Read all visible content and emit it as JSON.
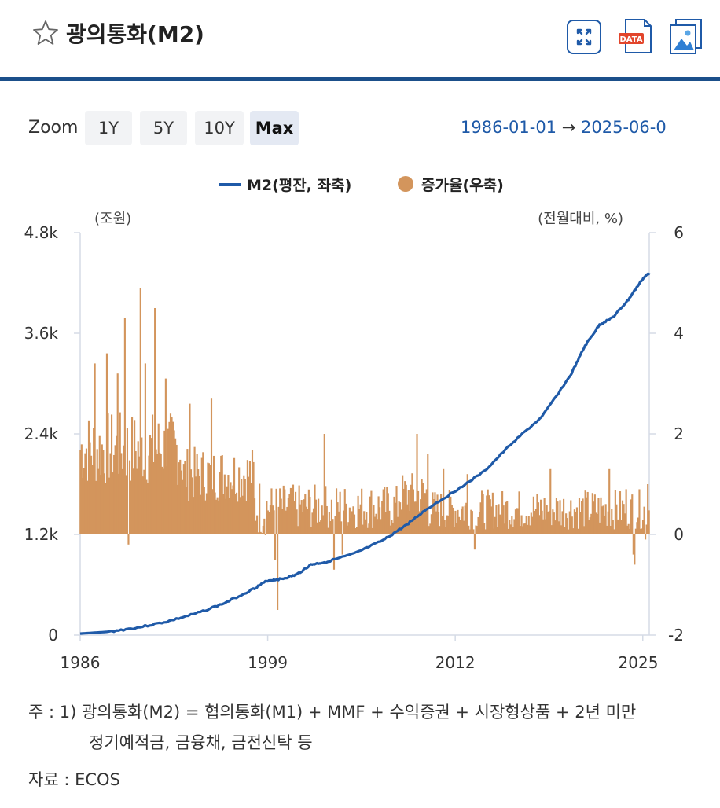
{
  "header": {
    "title": "광의통화(M2)",
    "icons": [
      "star-icon",
      "fullscreen-icon",
      "data-download-icon",
      "image-download-icon"
    ],
    "data_badge": "DATA"
  },
  "zoom": {
    "label": "Zoom",
    "buttons": [
      "1Y",
      "5Y",
      "10Y",
      "Max"
    ],
    "active": "Max"
  },
  "range": {
    "start": "1986-01-01",
    "arrow": "→",
    "end": "2025-06-0"
  },
  "chart_data": {
    "type": "bar+line",
    "legend": [
      "M2(평잔, 좌축)",
      "증가율(우축)"
    ],
    "legend_position": "top-center",
    "left_unit": "(조원)",
    "right_unit": "(전월대비, %)",
    "left_ticks": [
      "0",
      "1.2k",
      "2.4k",
      "3.6k",
      "4.8k"
    ],
    "right_ticks": [
      "-2",
      "0",
      "2",
      "4",
      "6"
    ],
    "x_ticks": [
      "1986",
      "1999",
      "2012",
      "2025"
    ],
    "x_range": [
      1986,
      2025.45
    ],
    "left_range": [
      0,
      4800
    ],
    "right_range": [
      -2,
      6
    ],
    "grid": false,
    "colors": {
      "line": "#1f5aa8",
      "bars": "#d3955c"
    },
    "series": [
      {
        "name": "M2(평잔, 좌축)",
        "axis": "left",
        "points": [
          [
            1986.0,
            18
          ],
          [
            1988.0,
            40
          ],
          [
            1990.0,
            90
          ],
          [
            1992.0,
            160
          ],
          [
            1994.0,
            255
          ],
          [
            1996.0,
            380
          ],
          [
            1998.0,
            550
          ],
          [
            1999.0,
            650
          ],
          [
            2000.0,
            670
          ],
          [
            2001.0,
            720
          ],
          [
            2002.0,
            840
          ],
          [
            2003.0,
            870
          ],
          [
            2005.0,
            970
          ],
          [
            2007.0,
            1130
          ],
          [
            2008.5,
            1300
          ],
          [
            2010.0,
            1500
          ],
          [
            2012.0,
            1720
          ],
          [
            2014.0,
            1950
          ],
          [
            2016.0,
            2300
          ],
          [
            2018.0,
            2600
          ],
          [
            2020.0,
            3100
          ],
          [
            2021.0,
            3450
          ],
          [
            2022.0,
            3700
          ],
          [
            2023.0,
            3800
          ],
          [
            2024.0,
            4000
          ],
          [
            2025.0,
            4250
          ],
          [
            2025.45,
            4320
          ]
        ]
      },
      {
        "name": "증가율(우축)",
        "axis": "right",
        "segments": [
          {
            "from": 1986.0,
            "to": 1993.0,
            "avg": 1.7,
            "amp": 0.75
          },
          {
            "from": 1993.0,
            "to": 1998.0,
            "avg": 1.2,
            "amp": 0.55
          },
          {
            "from": 1998.0,
            "to": 1999.0,
            "avg": 0.55,
            "amp": 0.6
          },
          {
            "from": 1999.0,
            "to": 2008.0,
            "avg": 0.55,
            "amp": 0.45
          },
          {
            "from": 2008.0,
            "to": 2010.0,
            "avg": 0.8,
            "amp": 0.45
          },
          {
            "from": 2010.0,
            "to": 2025.45,
            "avg": 0.5,
            "amp": 0.4
          }
        ],
        "spikes": [
          [
            1990.2,
            4.9
          ],
          [
            1991.2,
            4.5
          ],
          [
            1989.1,
            4.3
          ],
          [
            1987.8,
            3.6
          ],
          [
            1990.5,
            3.4
          ],
          [
            1988.6,
            3.2
          ],
          [
            1987.0,
            3.4
          ],
          [
            1991.9,
            3.1
          ],
          [
            1993.6,
            2.6
          ],
          [
            1995.1,
            2.7
          ],
          [
            1989.3,
            -0.2
          ],
          [
            1999.7,
            -1.5
          ],
          [
            1999.5,
            -0.5
          ],
          [
            2001.5,
            0.7
          ],
          [
            2002.9,
            2.0
          ],
          [
            2003.6,
            -0.7
          ],
          [
            2004.2,
            -0.4
          ],
          [
            2009.3,
            2.0
          ],
          [
            2010.1,
            1.6
          ],
          [
            2011.2,
            1.3
          ],
          [
            2012.8,
            1.2
          ],
          [
            2013.3,
            -0.3
          ],
          [
            2018.6,
            1.3
          ],
          [
            2022.7,
            1.3
          ],
          [
            2023.8,
            0.9
          ],
          [
            2024.3,
            -0.4
          ],
          [
            2024.4,
            -0.6
          ],
          [
            2025.2,
            -0.1
          ],
          [
            2025.35,
            1.0
          ]
        ]
      }
    ]
  },
  "notes": {
    "note_prefix": "주 : 1)",
    "note_line1": "광의통화(M2) = 협의통화(M1) + MMF + 수익증권 + 시장형상품 + 2년 미만",
    "note_line2": "정기예적금, 금융채, 금전신탁 등",
    "source_prefix": "자료 :",
    "source_value": "ECOS"
  }
}
